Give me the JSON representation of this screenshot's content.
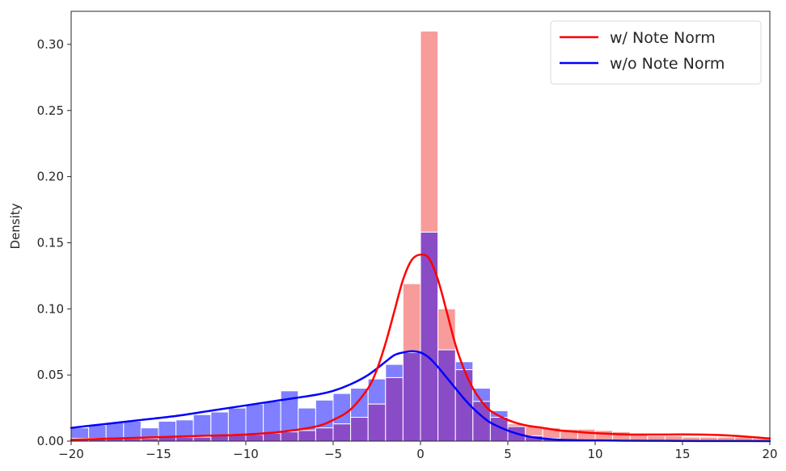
{
  "chart_data": {
    "type": "bar",
    "title": "",
    "xlabel": "",
    "ylabel": "Density",
    "xlim": [
      -20,
      20
    ],
    "ylim": [
      0,
      0.325
    ],
    "grid": false,
    "legend": "top-right",
    "x_ticks": [
      {
        "value": -20,
        "label": "−20"
      },
      {
        "value": -15,
        "label": "−15"
      },
      {
        "value": -10,
        "label": "−10"
      },
      {
        "value": -5,
        "label": "−5"
      },
      {
        "value": 0,
        "label": "0"
      },
      {
        "value": 5,
        "label": "5"
      },
      {
        "value": 10,
        "label": "10"
      },
      {
        "value": 15,
        "label": "15"
      },
      {
        "value": 20,
        "label": "20"
      }
    ],
    "y_ticks": [
      {
        "value": 0,
        "label": "0.00"
      },
      {
        "value": 0.05,
        "label": "0.05"
      },
      {
        "value": 0.1,
        "label": "0.10"
      },
      {
        "value": 0.15,
        "label": "0.15"
      },
      {
        "value": 0.2,
        "label": "0.20"
      },
      {
        "value": 0.25,
        "label": "0.25"
      },
      {
        "value": 0.3,
        "label": "0.30"
      }
    ],
    "bin_edges": [
      -20,
      -19,
      -18,
      -17,
      -16,
      -15,
      -14,
      -13,
      -12,
      -11,
      -10,
      -9,
      -8,
      -7,
      -6,
      -5,
      -4,
      -3,
      -2,
      -1,
      0,
      1,
      2,
      3,
      4,
      5,
      6,
      7,
      8,
      9,
      10,
      11,
      12,
      13,
      14,
      15,
      16,
      17,
      18,
      19,
      20
    ],
    "series": [
      {
        "name": "w/ Note Norm",
        "line_color": "#ff0000",
        "bar_color": "#f89b9b",
        "hist": [
          0.002,
          0.002,
          0.002,
          0.002,
          0.002,
          0.003,
          0.003,
          0.003,
          0.004,
          0.005,
          0.005,
          0.006,
          0.007,
          0.008,
          0.01,
          0.013,
          0.018,
          0.028,
          0.048,
          0.119,
          0.31,
          0.1,
          0.054,
          0.03,
          0.018,
          0.013,
          0.011,
          0.01,
          0.009,
          0.009,
          0.008,
          0.007,
          0.005,
          0.004,
          0.004,
          0.003,
          0.003,
          0.003,
          0.003,
          0.002
        ],
        "kde_x": [
          -20,
          -17.5,
          -15,
          -12.5,
          -10,
          -8,
          -6,
          -5,
          -4,
          -3,
          -2.5,
          -2,
          -1.5,
          -1,
          -0.5,
          0,
          0.5,
          1,
          1.5,
          2,
          2.5,
          3,
          3.5,
          4,
          5,
          6,
          7,
          8,
          9,
          10,
          12,
          14,
          16,
          18,
          20
        ],
        "kde_y": [
          0.001,
          0.002,
          0.003,
          0.004,
          0.005,
          0.007,
          0.011,
          0.016,
          0.024,
          0.04,
          0.054,
          0.074,
          0.098,
          0.122,
          0.137,
          0.141,
          0.138,
          0.122,
          0.098,
          0.073,
          0.054,
          0.04,
          0.03,
          0.023,
          0.016,
          0.012,
          0.01,
          0.008,
          0.007,
          0.006,
          0.005,
          0.005,
          0.005,
          0.004,
          0.002
        ]
      },
      {
        "name": "w/o Note Norm",
        "line_color": "#0000ff",
        "bar_color": "#7f7fff",
        "hist": [
          0.01,
          0.012,
          0.014,
          0.015,
          0.01,
          0.015,
          0.016,
          0.02,
          0.022,
          0.025,
          0.028,
          0.03,
          0.038,
          0.025,
          0.031,
          0.036,
          0.04,
          0.047,
          0.058,
          0.067,
          0.158,
          0.069,
          0.06,
          0.04,
          0.023,
          0.011,
          0.004,
          0.002,
          0.001,
          0.001,
          0.0,
          0.0,
          0.0,
          0.0,
          0.0,
          0.0,
          0.0,
          0.0,
          0.0,
          0.0
        ],
        "kde_x": [
          -20,
          -18,
          -16,
          -14,
          -12,
          -10,
          -8,
          -6,
          -5,
          -4,
          -3,
          -2,
          -1.5,
          -1,
          -0.5,
          0,
          0.5,
          1,
          1.5,
          2,
          2.5,
          3,
          3.5,
          4,
          5,
          6,
          7,
          8,
          10,
          12,
          14,
          16,
          18,
          20
        ],
        "kde_y": [
          0.01,
          0.013,
          0.016,
          0.019,
          0.023,
          0.027,
          0.031,
          0.035,
          0.038,
          0.043,
          0.05,
          0.06,
          0.065,
          0.067,
          0.068,
          0.067,
          0.063,
          0.056,
          0.048,
          0.04,
          0.032,
          0.025,
          0.019,
          0.014,
          0.008,
          0.004,
          0.002,
          0.001,
          0.0005,
          0.0003,
          0.0002,
          0.0001,
          0.0001,
          0.0
        ]
      }
    ],
    "overlap_color": "#8a4cc6"
  }
}
